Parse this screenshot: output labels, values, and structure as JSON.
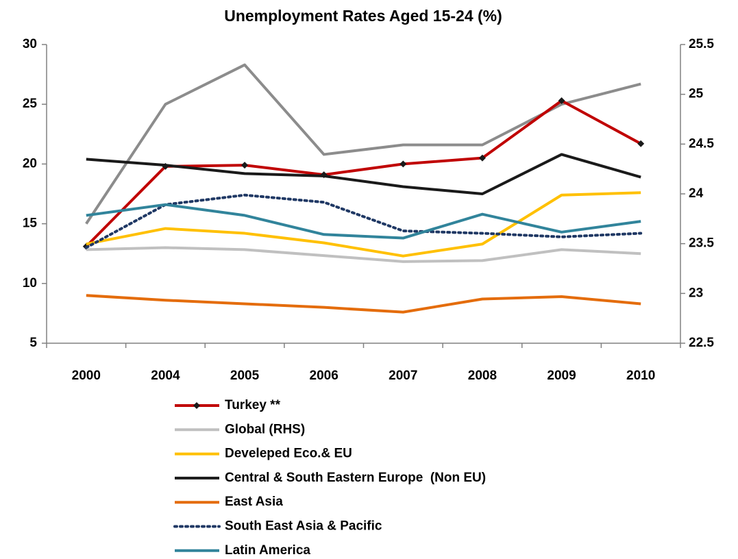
{
  "chart_data": {
    "type": "line",
    "title": "Unemployment Rates Aged 15-24 (%)",
    "categories": [
      "2000",
      "2004",
      "2005",
      "2006",
      "2007",
      "2008",
      "2009",
      "2010"
    ],
    "ylim": [
      5,
      30
    ],
    "yticks": [
      5,
      10,
      15,
      20,
      25,
      30
    ],
    "y2lim": [
      22.5,
      25.5
    ],
    "y2ticks": [
      22.5,
      23,
      23.5,
      24,
      24.5,
      25,
      25.5
    ],
    "grid": false,
    "legend": "bottom",
    "series": [
      {
        "name": "Turkey **",
        "color": "#c00000",
        "marker": "diamond",
        "values": [
          13.1,
          19.8,
          19.9,
          19.1,
          20.0,
          20.5,
          25.3,
          21.7
        ]
      },
      {
        "name": "Global (RHS)",
        "color": "#c0c0c0",
        "axis": "y2",
        "values": [
          23.44,
          23.46,
          23.44,
          23.38,
          23.32,
          23.33,
          23.44,
          23.4
        ]
      },
      {
        "name": "Develeped Eco.& EU",
        "color": "#ffc000",
        "values": [
          13.3,
          14.6,
          14.2,
          13.4,
          12.3,
          13.3,
          17.4,
          17.6
        ]
      },
      {
        "name": "Central & South Eastern Europe  (Non EU)",
        "color": "#1a1a1a",
        "values": [
          20.4,
          19.9,
          19.2,
          19.0,
          18.1,
          17.5,
          20.8,
          18.9
        ]
      },
      {
        "name": "East Asia",
        "color": "#e46c0a",
        "values": [
          9.0,
          8.6,
          8.3,
          8.0,
          7.6,
          8.7,
          8.9,
          8.3
        ]
      },
      {
        "name": "South East Asia & Pacific",
        "color": "#1f3864",
        "dash": "dot",
        "values": [
          13.0,
          16.6,
          17.4,
          16.8,
          14.4,
          14.2,
          13.9,
          14.2
        ]
      },
      {
        "name": "Latin America",
        "color": "#31849b",
        "values": [
          15.7,
          16.6,
          15.7,
          14.1,
          13.8,
          15.8,
          14.3,
          15.2
        ]
      },
      {
        "color": "#8c8c8c",
        "values": [
          15,
          25,
          28.3,
          20.8,
          21.6,
          21.6,
          25,
          26.7
        ]
      }
    ]
  }
}
